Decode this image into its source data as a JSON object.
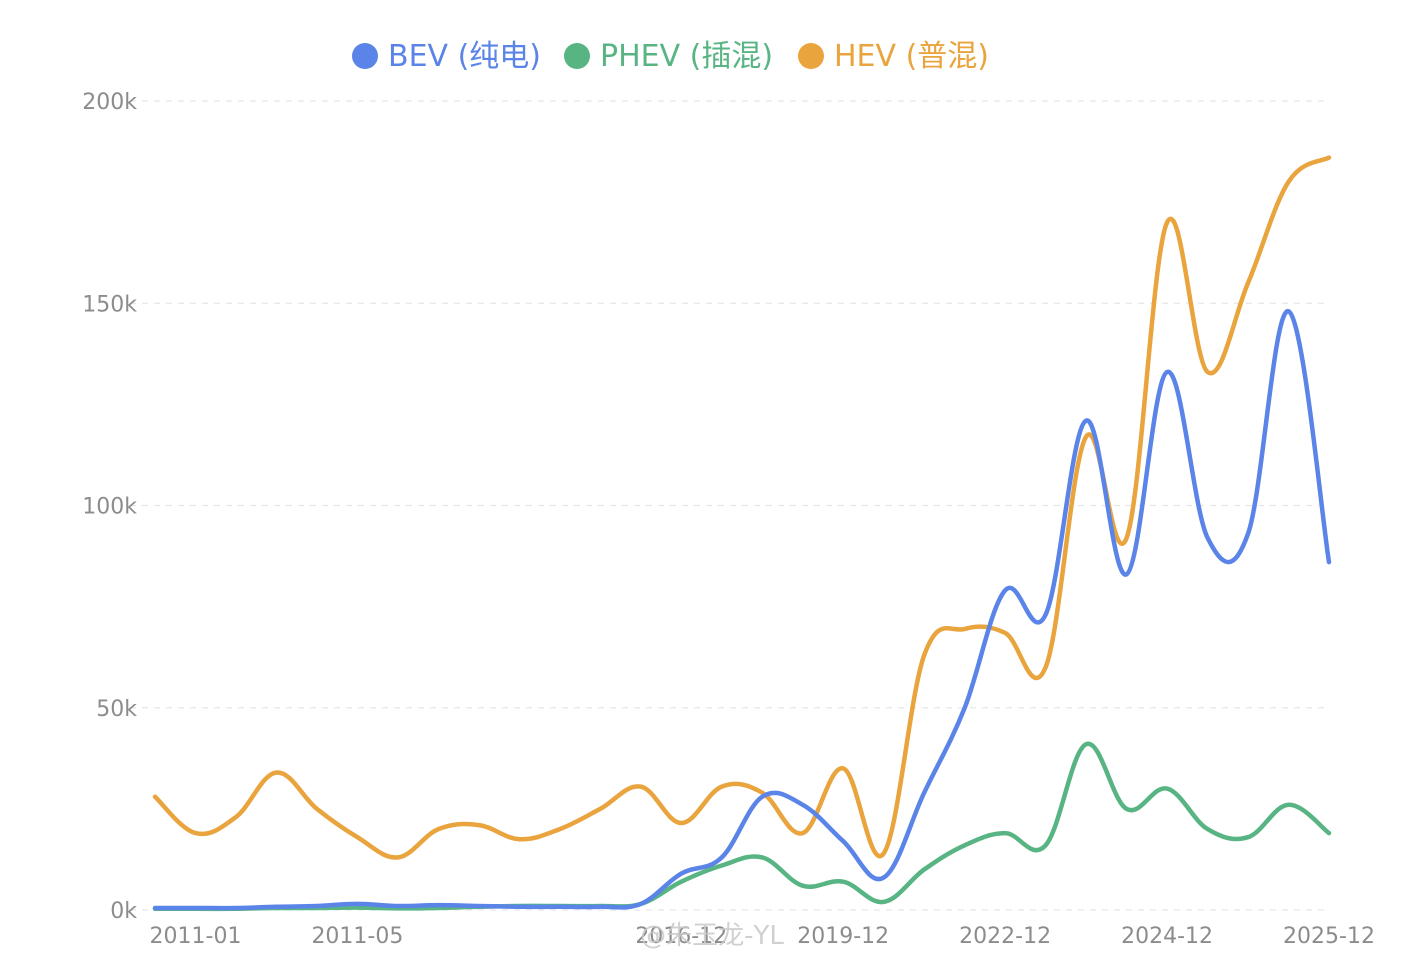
{
  "chart_data": {
    "type": "line",
    "title": "",
    "xlabel": "",
    "ylabel": "",
    "ylim": [
      0,
      200000
    ],
    "y_ticks": [
      {
        "value": 0,
        "label": "0k"
      },
      {
        "value": 50000,
        "label": "50k"
      },
      {
        "value": 100000,
        "label": "100k"
      },
      {
        "value": 150000,
        "label": "150k"
      },
      {
        "value": 200000,
        "label": "200k"
      }
    ],
    "x_tick_labels": [
      {
        "index": 1,
        "label": "2011-01"
      },
      {
        "index": 5,
        "label": "2011-05"
      },
      {
        "index": 13,
        "label": "2016-12"
      },
      {
        "index": 17,
        "label": "2019-12"
      },
      {
        "index": 21,
        "label": "2022-12"
      },
      {
        "index": 25,
        "label": "2024-12"
      },
      {
        "index": 29,
        "label": "2025-12"
      }
    ],
    "grid": true,
    "legend_position": "top-center",
    "series": [
      {
        "name": "BEV (纯电)",
        "color": "#5B84E8",
        "values": [
          500,
          500,
          500,
          800,
          1000,
          1500,
          1000,
          1200,
          1000,
          800,
          800,
          800,
          1500,
          9000,
          13000,
          28000,
          26000,
          17000,
          8000,
          29000,
          50000,
          79000,
          73000,
          121000,
          83000,
          133000,
          92000,
          93000,
          148000,
          86000
        ]
      },
      {
        "name": "PHEV (插混)",
        "color": "#58B583",
        "values": [
          300,
          300,
          300,
          500,
          500,
          600,
          400,
          500,
          800,
          1000,
          1000,
          1000,
          1500,
          7000,
          11000,
          13000,
          6000,
          7000,
          2000,
          10000,
          16000,
          19000,
          16000,
          41000,
          25000,
          30000,
          20000,
          18000,
          26000,
          19000
        ]
      },
      {
        "name": "HEV (普混)",
        "color": "#E9A43D",
        "values": [
          28000,
          19000,
          23000,
          34000,
          25000,
          18000,
          13000,
          20000,
          21000,
          17500,
          20000,
          25000,
          30500,
          21500,
          30500,
          29000,
          19000,
          35000,
          14000,
          63000,
          69500,
          68500,
          60000,
          117000,
          92000,
          170000,
          133000,
          155000,
          180000,
          186000
        ]
      }
    ]
  },
  "watermark": "@朱玉龙-YL"
}
